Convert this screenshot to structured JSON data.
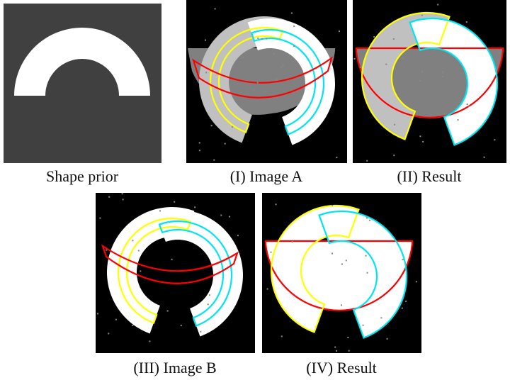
{
  "panels": [
    {
      "caption": "Shape prior"
    },
    {
      "caption": "(I) Image A"
    },
    {
      "caption": "(II) Result"
    },
    {
      "caption": "(III) Image B"
    },
    {
      "caption": "(IV) Result"
    }
  ]
}
